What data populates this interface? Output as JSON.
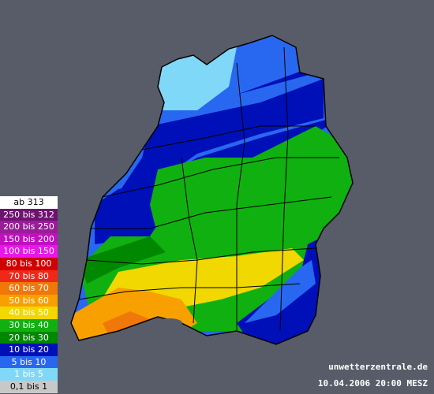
{
  "legend": {
    "entries": [
      {
        "label": "ab 313",
        "color": "#ffffff"
      },
      {
        "label": "250 bis 312",
        "color": "#6e1470"
      },
      {
        "label": "200 bis 250",
        "color": "#9a1c98"
      },
      {
        "label": "150 bis 200",
        "color": "#c010c0"
      },
      {
        "label": "100 bis 150",
        "color": "#e818e8"
      },
      {
        "label": "80 bis 100",
        "color": "#d00000"
      },
      {
        "label": "70 bis 80",
        "color": "#f02818"
      },
      {
        "label": "60 bis 70",
        "color": "#f07808"
      },
      {
        "label": "50 bis 60",
        "color": "#f8a000"
      },
      {
        "label": "40 bis 50",
        "color": "#f0d800"
      },
      {
        "label": "30 bis 40",
        "color": "#10b010"
      },
      {
        "label": "20 bis 30",
        "color": "#008800"
      },
      {
        "label": "10 bis 20",
        "color": "#0010b8"
      },
      {
        "label": "5 bis 10",
        "color": "#2868f0"
      },
      {
        "label": "1 bis 5",
        "color": "#80d8f8"
      },
      {
        "label": "0,1 bis 1",
        "color": "#c8c8c8"
      }
    ]
  },
  "footer": {
    "site": "unwetterzentrale.de",
    "timestamp": "10.04.2006 20:00 MESZ"
  }
}
